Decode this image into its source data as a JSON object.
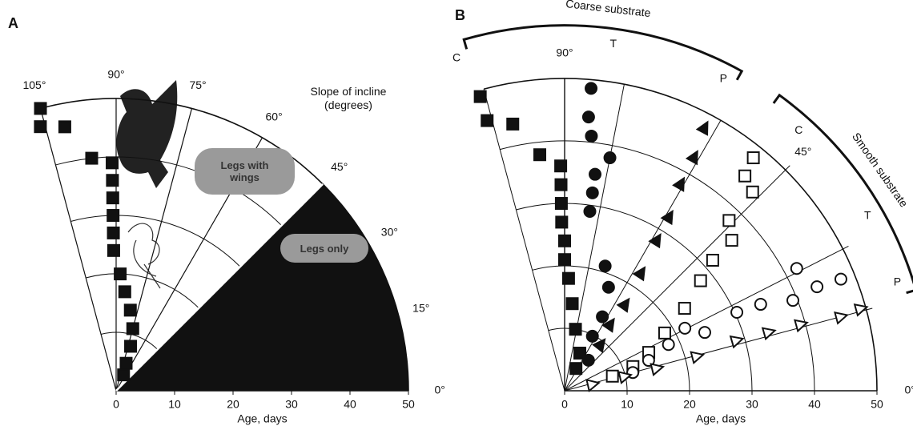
{
  "chart_data": [
    {
      "type": "polar",
      "panel": "A",
      "xlabel": "Age, days",
      "xlim": [
        0,
        50
      ],
      "xticks": [
        0,
        10,
        20,
        30,
        40,
        50
      ],
      "angle_ticks": [
        {
          "value": 105,
          "label": "105°"
        },
        {
          "value": 90,
          "label": "90°"
        },
        {
          "value": 75,
          "label": "75°"
        },
        {
          "value": 60,
          "label": "60°"
        },
        {
          "value": 45,
          "label": "45°"
        },
        {
          "value": 30,
          "label": "30°"
        },
        {
          "value": 15,
          "label": "15°"
        },
        {
          "value": 0,
          "label": "0°"
        }
      ],
      "shaded": {
        "from": 0,
        "to": 45,
        "color": "#111111"
      },
      "annotation": "Slope of incline (degrees)",
      "regions": [
        {
          "label": "Legs with wings"
        },
        {
          "label": "Legs only"
        }
      ],
      "series": [
        {
          "marker": "square",
          "filled": true,
          "color": "#111111",
          "values": [
            50,
            47,
            46,
            40,
            39,
            36,
            33,
            30,
            27,
            24,
            20,
            17,
            14,
            11,
            8,
            5,
            3
          ],
          "angles": [
            105,
            106,
            101,
            96,
            91,
            91,
            91,
            91,
            91,
            91,
            88,
            85,
            80,
            75,
            72,
            70,
            65
          ]
        }
      ]
    },
    {
      "type": "polar",
      "panel": "B",
      "xlabel": "Age, days",
      "xlim": [
        0,
        50
      ],
      "xticks": [
        0,
        10,
        20,
        30,
        40,
        50
      ],
      "angle_ticks": [
        {
          "value": 90,
          "label": "90°"
        },
        {
          "value": 45,
          "label": "45°"
        },
        {
          "value": 0,
          "label": "0°"
        }
      ],
      "rays": [
        {
          "angle": 105,
          "label": "C"
        },
        {
          "angle": 79,
          "label": "T"
        },
        {
          "angle": 60,
          "label": "P"
        },
        {
          "angle": 45,
          "label": "C"
        },
        {
          "angle": 27,
          "label": "T"
        },
        {
          "angle": 15,
          "label": "P"
        }
      ],
      "groups": [
        {
          "label": "Coarse substrate",
          "from": 61,
          "to": 106
        },
        {
          "label": "Smooth substrate",
          "from": 16,
          "to": 54
        }
      ],
      "series": [
        {
          "marker": "square",
          "filled": true,
          "color": "#111111",
          "values": [
            49,
            45,
            43.5,
            38,
            36,
            33,
            30,
            27,
            24,
            21,
            18,
            14,
            10,
            6.5,
            4
          ],
          "angles": [
            106,
            106,
            101,
            96,
            91,
            91,
            91,
            91,
            90,
            90,
            88,
            85,
            80,
            68,
            63
          ]
        },
        {
          "marker": "circle",
          "filled": true,
          "color": "#111111",
          "values": [
            48.6,
            44,
            41,
            38,
            35,
            32,
            29,
            21,
            18,
            13.3,
            9.8,
            6.2
          ],
          "angles": [
            85,
            85,
            84,
            79,
            82,
            82,
            82,
            72,
            67,
            63,
            63,
            52
          ]
        },
        {
          "marker": "triangle",
          "filled": true,
          "color": "#111111",
          "values": [
            47.7,
            42.8,
            38,
            32.5,
            28.3,
            22.5,
            16.9,
            12.9,
            9.4
          ],
          "angles": [
            62,
            61,
            60.7,
            59,
            58.5,
            57,
            55,
            55.5,
            52
          ]
        },
        {
          "marker": "square",
          "filled": false,
          "color": "#111111",
          "values": [
            48,
            44.9,
            43.8,
            37.9,
            36,
            31.6,
            28,
            23.3,
            18.5,
            14.8,
            11.6,
            8
          ],
          "angles": [
            51,
            50,
            46.6,
            46,
            42,
            41.4,
            39,
            34.5,
            30,
            24.5,
            19.5,
            17
          ]
        },
        {
          "marker": "circle",
          "filled": false,
          "color": "#111111",
          "values": [
            42,
            47.7,
            43.7,
            39.3,
            34.3,
            30.3,
            24.3,
            21.7,
            18.2,
            14.3,
            11.3
          ],
          "angles": [
            27.8,
            22,
            22.4,
            21.6,
            23.8,
            24.5,
            22.6,
            27.5,
            24,
            19.9,
            15
          ]
        },
        {
          "marker": "triangle",
          "filled": false,
          "color": "#111111",
          "values": [
            49.2,
            45.8,
            39.3,
            34,
            28.7,
            21.9,
            15.2,
            9.9,
            4.6
          ],
          "angles": [
            15.5,
            15,
            15.7,
            16,
            16.3,
            14.6,
            13.7,
            13.5,
            13
          ]
        }
      ]
    }
  ]
}
